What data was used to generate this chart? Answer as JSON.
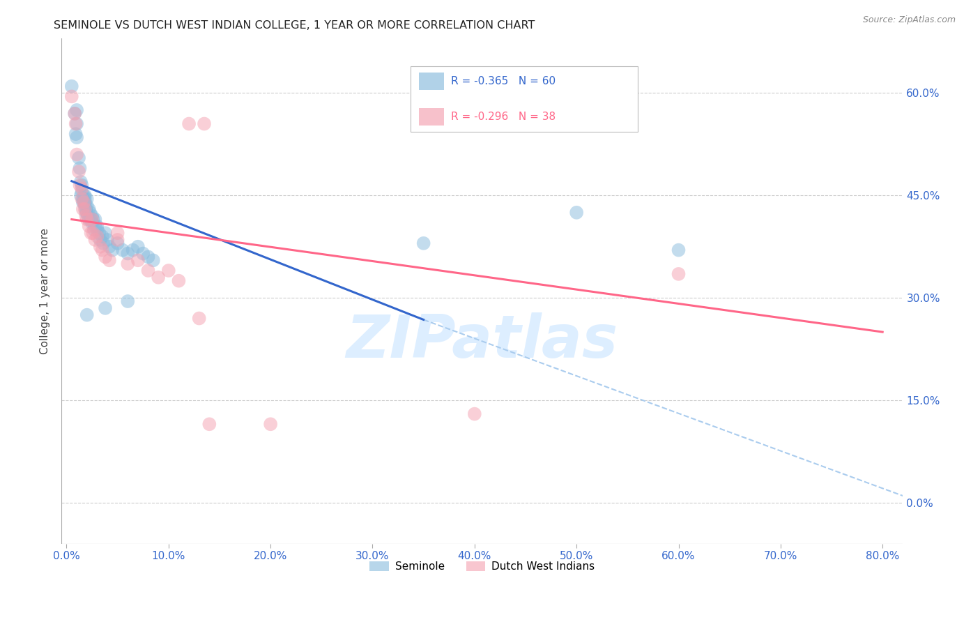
{
  "title": "SEMINOLE VS DUTCH WEST INDIAN COLLEGE, 1 YEAR OR MORE CORRELATION CHART",
  "source": "Source: ZipAtlas.com",
  "xlabel_ticks": [
    "0.0%",
    "10.0%",
    "20.0%",
    "30.0%",
    "40.0%",
    "50.0%",
    "60.0%",
    "70.0%",
    "80.0%"
  ],
  "xtick_vals": [
    0.0,
    0.1,
    0.2,
    0.3,
    0.4,
    0.5,
    0.6,
    0.7,
    0.8
  ],
  "ylabel": "College, 1 year or more",
  "ytick_vals": [
    0.0,
    0.15,
    0.3,
    0.45,
    0.6
  ],
  "ytick_labels": [
    "0.0%",
    "15.0%",
    "30.0%",
    "45.0%",
    "60.0%"
  ],
  "xlim": [
    -0.005,
    0.82
  ],
  "ylim": [
    -0.06,
    0.68
  ],
  "legend_label1": "Seminole",
  "legend_label2": "Dutch West Indians",
  "seminole_color": "#88bbdd",
  "dutch_color": "#f4a0b0",
  "blue_line_color": "#3366CC",
  "pink_line_color": "#FF6688",
  "dashed_line_color": "#aaccee",
  "watermark": "ZIPatlas",
  "watermark_color": "#ddeeff",
  "seminole_points": [
    [
      0.005,
      0.61
    ],
    [
      0.008,
      0.57
    ],
    [
      0.009,
      0.54
    ],
    [
      0.01,
      0.575
    ],
    [
      0.01,
      0.555
    ],
    [
      0.01,
      0.535
    ],
    [
      0.012,
      0.505
    ],
    [
      0.013,
      0.49
    ],
    [
      0.014,
      0.47
    ],
    [
      0.014,
      0.45
    ],
    [
      0.015,
      0.465
    ],
    [
      0.015,
      0.455
    ],
    [
      0.016,
      0.445
    ],
    [
      0.016,
      0.44
    ],
    [
      0.017,
      0.45
    ],
    [
      0.017,
      0.44
    ],
    [
      0.018,
      0.45
    ],
    [
      0.018,
      0.445
    ],
    [
      0.018,
      0.44
    ],
    [
      0.018,
      0.435
    ],
    [
      0.019,
      0.43
    ],
    [
      0.019,
      0.425
    ],
    [
      0.02,
      0.445
    ],
    [
      0.02,
      0.435
    ],
    [
      0.02,
      0.425
    ],
    [
      0.021,
      0.42
    ],
    [
      0.022,
      0.43
    ],
    [
      0.022,
      0.415
    ],
    [
      0.023,
      0.425
    ],
    [
      0.024,
      0.415
    ],
    [
      0.025,
      0.42
    ],
    [
      0.025,
      0.41
    ],
    [
      0.026,
      0.415
    ],
    [
      0.027,
      0.4
    ],
    [
      0.028,
      0.415
    ],
    [
      0.028,
      0.405
    ],
    [
      0.03,
      0.405
    ],
    [
      0.03,
      0.4
    ],
    [
      0.032,
      0.395
    ],
    [
      0.033,
      0.385
    ],
    [
      0.035,
      0.39
    ],
    [
      0.036,
      0.38
    ],
    [
      0.038,
      0.395
    ],
    [
      0.04,
      0.385
    ],
    [
      0.042,
      0.375
    ],
    [
      0.045,
      0.37
    ],
    [
      0.05,
      0.38
    ],
    [
      0.055,
      0.37
    ],
    [
      0.06,
      0.365
    ],
    [
      0.065,
      0.37
    ],
    [
      0.07,
      0.375
    ],
    [
      0.075,
      0.365
    ],
    [
      0.08,
      0.36
    ],
    [
      0.085,
      0.355
    ],
    [
      0.02,
      0.275
    ],
    [
      0.038,
      0.285
    ],
    [
      0.06,
      0.295
    ],
    [
      0.35,
      0.38
    ],
    [
      0.5,
      0.425
    ],
    [
      0.6,
      0.37
    ]
  ],
  "dutch_points": [
    [
      0.005,
      0.595
    ],
    [
      0.008,
      0.57
    ],
    [
      0.009,
      0.555
    ],
    [
      0.01,
      0.51
    ],
    [
      0.012,
      0.485
    ],
    [
      0.013,
      0.465
    ],
    [
      0.015,
      0.46
    ],
    [
      0.015,
      0.445
    ],
    [
      0.016,
      0.43
    ],
    [
      0.017,
      0.44
    ],
    [
      0.018,
      0.43
    ],
    [
      0.019,
      0.42
    ],
    [
      0.02,
      0.415
    ],
    [
      0.022,
      0.405
    ],
    [
      0.024,
      0.395
    ],
    [
      0.025,
      0.415
    ],
    [
      0.026,
      0.395
    ],
    [
      0.028,
      0.385
    ],
    [
      0.03,
      0.39
    ],
    [
      0.033,
      0.375
    ],
    [
      0.035,
      0.37
    ],
    [
      0.038,
      0.36
    ],
    [
      0.042,
      0.355
    ],
    [
      0.05,
      0.395
    ],
    [
      0.05,
      0.385
    ],
    [
      0.06,
      0.35
    ],
    [
      0.07,
      0.355
    ],
    [
      0.08,
      0.34
    ],
    [
      0.09,
      0.33
    ],
    [
      0.1,
      0.34
    ],
    [
      0.11,
      0.325
    ],
    [
      0.13,
      0.27
    ],
    [
      0.14,
      0.115
    ],
    [
      0.2,
      0.115
    ],
    [
      0.6,
      0.335
    ],
    [
      0.135,
      0.555
    ],
    [
      0.12,
      0.555
    ],
    [
      0.4,
      0.13
    ]
  ],
  "blue_line_solid": [
    [
      0.005,
      0.471
    ],
    [
      0.35,
      0.268
    ]
  ],
  "pink_line": [
    [
      0.005,
      0.415
    ],
    [
      0.8,
      0.25
    ]
  ],
  "dashed_line": [
    [
      0.35,
      0.268
    ],
    [
      0.82,
      0.01
    ]
  ]
}
